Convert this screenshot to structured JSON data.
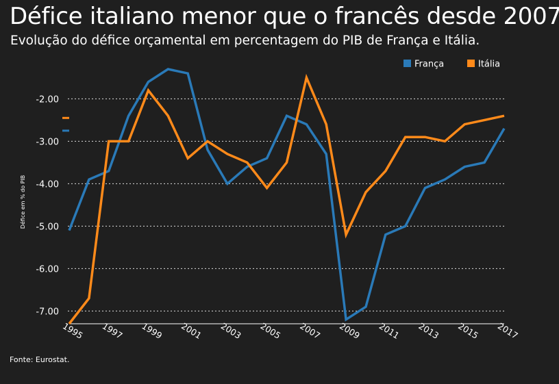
{
  "title": "Défice italiano menor que o francês desde 2007",
  "subtitle": "Evolução do défice orçamental em percentagem do PIB de França e Itália.",
  "source": "Fonte: Eurostat.",
  "colors": {
    "background": "#1f1f1f",
    "franca": "#2a7ab8",
    "italia": "#ff8a1a",
    "grid": "#e0e0e0"
  },
  "chart_data": {
    "type": "line",
    "ylabel": "Défice em % do PIB",
    "ylim": [
      -7.3,
      -1.3
    ],
    "yticks": [
      -2,
      -3,
      -4,
      -5,
      -6,
      -7
    ],
    "ytick_labels": [
      "-2.00",
      "-3.00",
      "-4.00",
      "-5.00",
      "-6.00",
      "-7.00"
    ],
    "grid": "horizontal dotted",
    "legend_position": "top-right",
    "x": [
      1995,
      1996,
      1997,
      1998,
      1999,
      2000,
      2001,
      2002,
      2003,
      2004,
      2005,
      2006,
      2007,
      2008,
      2009,
      2010,
      2011,
      2012,
      2013,
      2014,
      2015,
      2016,
      2017
    ],
    "xtick_labels": [
      "1995",
      "1997",
      "1999",
      "2001",
      "2003",
      "2005",
      "2007",
      "2009",
      "2011",
      "2013",
      "2015",
      "2017"
    ],
    "series": [
      {
        "name": "França",
        "color": "#2a7ab8",
        "values": [
          -5.1,
          -3.9,
          -3.7,
          -2.4,
          -1.6,
          -1.3,
          -1.4,
          -3.2,
          -4.0,
          -3.6,
          -3.4,
          -2.4,
          -2.6,
          -3.3,
          -7.2,
          -6.9,
          -5.2,
          -5.0,
          -4.1,
          -3.9,
          -3.6,
          -3.5,
          -2.7
        ]
      },
      {
        "name": "Itália",
        "color": "#ff8a1a",
        "values": [
          -7.3,
          -6.7,
          -3.0,
          -3.0,
          -1.8,
          -2.4,
          -3.4,
          -3.0,
          -3.3,
          -3.5,
          -4.1,
          -3.5,
          -1.5,
          -2.6,
          -5.2,
          -4.2,
          -3.7,
          -2.9,
          -2.9,
          -3.0,
          -2.6,
          -2.5,
          -2.4
        ]
      }
    ],
    "side_markers": [
      {
        "series": "Itália",
        "value": -2.45
      },
      {
        "series": "França",
        "value": -2.75
      }
    ]
  }
}
